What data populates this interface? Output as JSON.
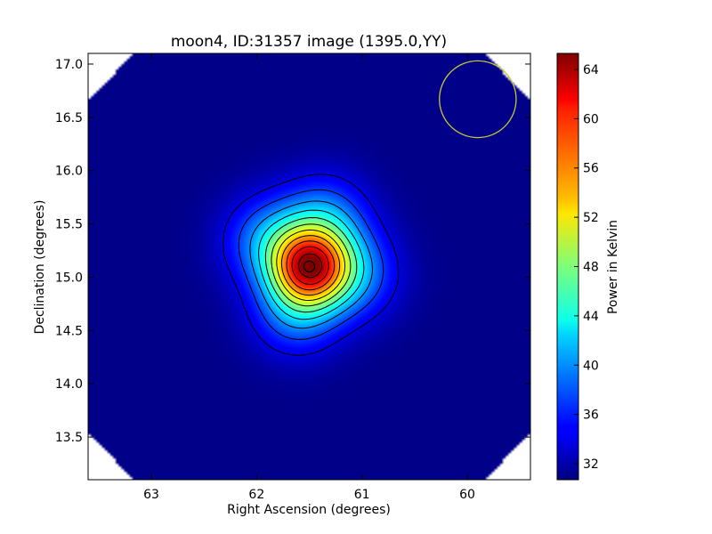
{
  "chart_data": {
    "type": "heatmap",
    "title": "moon4, ID:31357 image (1395.0,YY)",
    "xlabel": "Right Ascension (degrees)",
    "ylabel": "Declination (degrees)",
    "xlim": [
      63.6,
      59.4
    ],
    "ylim": [
      13.1,
      17.1
    ],
    "x_ticks": [
      63,
      62,
      61,
      60
    ],
    "x_tick_labels": [
      "63",
      "62",
      "61",
      "60"
    ],
    "y_ticks": [
      13.5,
      14.0,
      14.5,
      15.0,
      15.5,
      16.0,
      16.5,
      17.0
    ],
    "y_tick_labels": [
      "13.5",
      "14.0",
      "14.5",
      "15.0",
      "15.5",
      "16.0",
      "16.5",
      "17.0"
    ],
    "colorbar": {
      "label": "Power in Kelvin",
      "range": [
        30.7,
        65.3
      ],
      "ticks": [
        32,
        36,
        40,
        44,
        48,
        52,
        56,
        60,
        64
      ],
      "tick_labels": [
        "32",
        "36",
        "40",
        "44",
        "48",
        "52",
        "56",
        "60",
        "64"
      ],
      "colormap": "jet"
    },
    "source": {
      "ra": 61.5,
      "dec": 15.1,
      "peak": 65.3,
      "background": 31.0
    },
    "contours": [
      34,
      37,
      40,
      43,
      46,
      49,
      52,
      55,
      58,
      61,
      64
    ],
    "marker_circle": {
      "ra": 61.5,
      "dec": 15.1,
      "color": "#000000"
    },
    "beam_circle": {
      "ra": 59.9,
      "dec": 16.67,
      "radius_deg": 0.36,
      "color": "#c8c832"
    }
  }
}
